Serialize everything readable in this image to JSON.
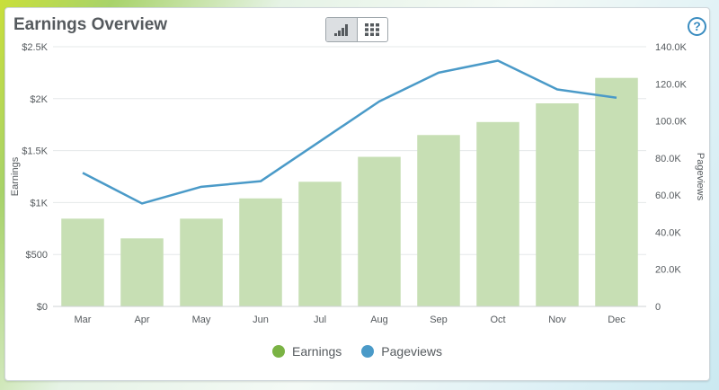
{
  "widget": {
    "title": "Earnings Overview",
    "help_glyph": "?"
  },
  "view_toggle": {
    "buttons": [
      {
        "icon": "bar-chart-icon",
        "active": true
      },
      {
        "icon": "grid-icon",
        "active": false
      }
    ]
  },
  "colors": {
    "bar": "#c7dfb4",
    "line": "#4a9ac8",
    "earnings_legend": "#7ab344",
    "pageviews_legend": "#4a9ac8",
    "grid": "#e5e8ea"
  },
  "chart_data": {
    "type": "bar+line",
    "categories": [
      "Mar",
      "Apr",
      "May",
      "Jun",
      "Jul",
      "Aug",
      "Sep",
      "Oct",
      "Nov",
      "Dec"
    ],
    "series": [
      {
        "name": "Earnings",
        "type": "bar",
        "axis": "left",
        "values": [
          845,
          655,
          845,
          1040,
          1200,
          1440,
          1650,
          1775,
          1955,
          2200
        ]
      },
      {
        "name": "Pageviews",
        "type": "line",
        "axis": "right",
        "values": [
          72000,
          55500,
          64500,
          67500,
          89000,
          110500,
          126000,
          132500,
          117000,
          112500
        ]
      }
    ],
    "y_left": {
      "label": "Earnings",
      "range": [
        0,
        2500
      ],
      "ticks": [
        0,
        500,
        1000,
        1500,
        2000,
        2500
      ],
      "tick_labels": [
        "$0",
        "$500",
        "$1K",
        "$1.5K",
        "$2K",
        "$2.5K"
      ]
    },
    "y_right": {
      "label": "Pageviews",
      "range": [
        0,
        140000
      ],
      "ticks": [
        0,
        20000,
        40000,
        60000,
        80000,
        100000,
        120000,
        140000
      ],
      "tick_labels": [
        "0",
        "20.0K",
        "40.0K",
        "60.0K",
        "80.0K",
        "100.0K",
        "120.0K",
        "140.0K"
      ]
    },
    "grid": true,
    "legend": {
      "position": "bottom-center",
      "entries": [
        "Earnings",
        "Pageviews"
      ]
    }
  }
}
